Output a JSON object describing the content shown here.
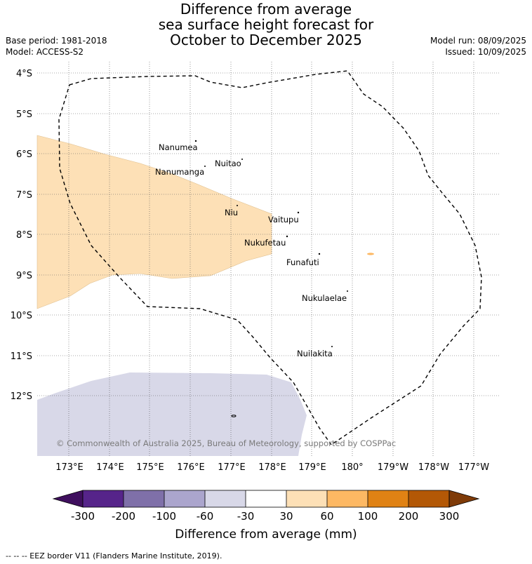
{
  "title": {
    "line1": "Difference from average",
    "line2": "sea surface height forecast for",
    "line3": "October to December 2025"
  },
  "meta": {
    "base_period": "Base period: 1981-2018",
    "model": "Model: ACCESS-S2",
    "model_run": "Model run: 08/09/2025",
    "issued": "Issued: 10/09/2025"
  },
  "map": {
    "lat_labels": [
      "4°S",
      "5°S",
      "6°S",
      "7°S",
      "8°S",
      "9°S",
      "10°S",
      "11°S",
      "12°S"
    ],
    "lon_labels": [
      "173°E",
      "174°E",
      "175°E",
      "176°E",
      "177°E",
      "178°E",
      "179°E",
      "180°",
      "179°W",
      "178°W",
      "177°W"
    ],
    "islands": [
      {
        "name": "Nanumea"
      },
      {
        "name": "Nuitao"
      },
      {
        "name": "Nanumanga"
      },
      {
        "name": "Niu"
      },
      {
        "name": "Vaitupu"
      },
      {
        "name": "Nukufetau"
      },
      {
        "name": "Funafuti"
      },
      {
        "name": "Nukulaelae"
      },
      {
        "name": "Nuilakita"
      }
    ],
    "copyright": "© Commonwealth of Australia 2025, Bureau of Meteorology, supported by COSPPac",
    "colors": {
      "positive_30_60": "#fde0b6",
      "negative_30_60": "#d8d8e8",
      "eez_border": "#000000"
    }
  },
  "colorbar": {
    "ticks": [
      "-300",
      "-200",
      "-100",
      "-60",
      "-30",
      "30",
      "60",
      "100",
      "200",
      "300"
    ],
    "colors": [
      "#3f0f5e",
      "#56248a",
      "#7f70a9",
      "#aba5cd",
      "#d8d8e8",
      "#ffffff",
      "#fde0b6",
      "#fdb863",
      "#e08214",
      "#b35806",
      "#7f3b08"
    ],
    "label": "Difference from average (mm)"
  },
  "footer": "--  --  -- EEZ border V11 (Flanders Marine Institute, 2019)."
}
